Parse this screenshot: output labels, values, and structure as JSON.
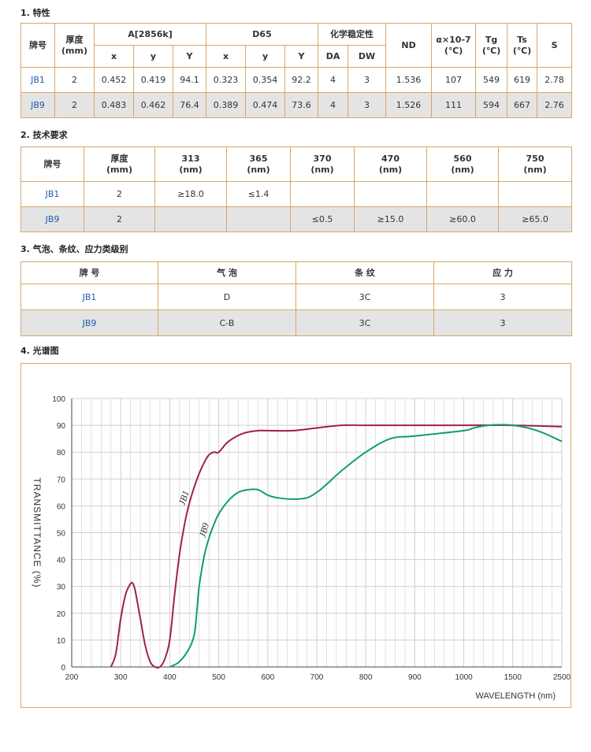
{
  "sections": {
    "s1": "1. 特性",
    "s2": "2. 技术要求",
    "s3": "3. 气泡、条纹、应力类级别",
    "s4": "4. 光谱图"
  },
  "table1": {
    "h_grade": "牌号",
    "h_thick": "厚度\n(mm)",
    "h_a": "A[2856k]",
    "h_d65": "D65",
    "h_chem": "化学稳定性",
    "h_nd": "ND",
    "h_alpha": "α×10-7\n(℃)",
    "h_tg": "Tg\n(℃)",
    "h_ts": "Ts\n(℃)",
    "h_s": "S",
    "sub": [
      "x",
      "y",
      "Y",
      "x",
      "y",
      "Y",
      "DA",
      "DW"
    ],
    "rows": [
      [
        "JB1",
        "2",
        "0.452",
        "0.419",
        "94.1",
        "0.323",
        "0.354",
        "92.2",
        "4",
        "3",
        "1.536",
        "107",
        "549",
        "619",
        "2.78"
      ],
      [
        "JB9",
        "2",
        "0.483",
        "0.462",
        "76.4",
        "0.389",
        "0.474",
        "73.6",
        "4",
        "3",
        "1.526",
        "111",
        "594",
        "667",
        "2.76"
      ]
    ]
  },
  "table2": {
    "headers": [
      "牌号",
      "厚度\n(mm)",
      "313\n(nm)",
      "365\n(nm)",
      "370\n(nm)",
      "470\n(nm)",
      "560\n(nm)",
      "750\n(nm)"
    ],
    "rows": [
      [
        "JB1",
        "2",
        "≥18.0",
        "≤1.4",
        "",
        "",
        "",
        ""
      ],
      [
        "JB9",
        "2",
        "",
        "",
        "≤0.5",
        "≥15.0",
        "≥60.0",
        "≥65.0"
      ]
    ]
  },
  "table3": {
    "headers": [
      "牌 号",
      "气 泡",
      "条 纹",
      "应 力"
    ],
    "rows": [
      [
        "JB1",
        "D",
        "3C",
        "3"
      ],
      [
        "JB9",
        "C-B",
        "3C",
        "3"
      ]
    ]
  },
  "chart_data": {
    "type": "line",
    "ylabel": "TRANSMITTANCE (%)",
    "xlabel": "WAVELENGTH (nm)",
    "x_ticks": [
      "200",
      "300",
      "400",
      "500",
      "600",
      "700",
      "800",
      "900",
      "1000",
      "1500",
      "2500"
    ],
    "y_ticks": [
      "0",
      "10",
      "20",
      "30",
      "40",
      "50",
      "60",
      "70",
      "80",
      "90",
      "100"
    ],
    "ylim": [
      0,
      100
    ],
    "grid": true,
    "series": [
      {
        "name": "JB1",
        "color": "#a0204a",
        "x": [
          280,
          290,
          300,
          310,
          320,
          325,
          330,
          340,
          350,
          360,
          370,
          380,
          390,
          400,
          410,
          420,
          430,
          440,
          450,
          460,
          470,
          480,
          490,
          500,
          520,
          550,
          580,
          600,
          650,
          700,
          750,
          800,
          900,
          1000,
          1500,
          2500
        ],
        "y": [
          0,
          5,
          18,
          27,
          31,
          31,
          28,
          18,
          8,
          2,
          0,
          0,
          3,
          10,
          27,
          42,
          53,
          61,
          67,
          72,
          76,
          79,
          80,
          80,
          84,
          87,
          88,
          88,
          88,
          89,
          90,
          90,
          90,
          90,
          90,
          89.5
        ]
      },
      {
        "name": "JB9",
        "color": "#10a060",
        "x": [
          400,
          420,
          440,
          450,
          455,
          460,
          470,
          480,
          490,
          500,
          520,
          540,
          560,
          580,
          600,
          620,
          650,
          680,
          700,
          720,
          750,
          800,
          850,
          900,
          1000,
          1100,
          1250,
          1500,
          2000,
          2500
        ],
        "y": [
          0,
          2,
          7,
          12,
          20,
          30,
          41,
          48,
          53,
          57,
          62,
          65,
          66,
          66,
          64,
          63,
          62.5,
          63,
          65,
          68,
          73,
          80,
          85,
          86,
          88,
          89,
          90,
          90,
          88,
          84
        ]
      }
    ]
  }
}
